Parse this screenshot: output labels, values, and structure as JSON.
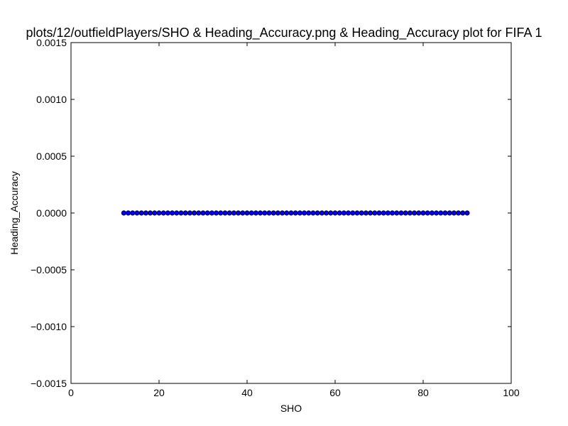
{
  "chart_data": {
    "type": "scatter",
    "title": "plots/12/outfieldPlayers/SHO & Heading_Accuracy.png & Heading_Accuracy plot for FIFA 1",
    "xlabel": "SHO",
    "ylabel": "Heading_Accuracy",
    "xlim": [
      0,
      100
    ],
    "ylim": [
      -0.0015,
      0.0015
    ],
    "x_ticks": [
      "0",
      "20",
      "40",
      "60",
      "80",
      "100"
    ],
    "y_ticks": [
      "0.0015",
      "0.0010",
      "0.0005",
      "0.0000",
      "−0.0005",
      "−0.0010",
      "−0.0015"
    ],
    "grid": false,
    "series": [
      {
        "color": "#0000ff",
        "x": [
          12,
          13,
          14,
          15,
          16,
          17,
          18,
          19,
          20,
          21,
          22,
          23,
          24,
          25,
          26,
          27,
          28,
          29,
          30,
          31,
          32,
          33,
          34,
          35,
          36,
          37,
          38,
          39,
          40,
          41,
          42,
          43,
          44,
          45,
          46,
          47,
          48,
          49,
          50,
          51,
          52,
          53,
          54,
          55,
          56,
          57,
          58,
          59,
          60,
          61,
          62,
          63,
          64,
          65,
          66,
          67,
          68,
          69,
          70,
          71,
          72,
          73,
          74,
          75,
          76,
          77,
          78,
          79,
          80,
          81,
          82,
          83,
          84,
          85,
          86,
          87,
          88,
          89,
          90
        ],
        "y": [
          0,
          0,
          0,
          0,
          0,
          0,
          0,
          0,
          0,
          0,
          0,
          0,
          0,
          0,
          0,
          0,
          0,
          0,
          0,
          0,
          0,
          0,
          0,
          0,
          0,
          0,
          0,
          0,
          0,
          0,
          0,
          0,
          0,
          0,
          0,
          0,
          0,
          0,
          0,
          0,
          0,
          0,
          0,
          0,
          0,
          0,
          0,
          0,
          0,
          0,
          0,
          0,
          0,
          0,
          0,
          0,
          0,
          0,
          0,
          0,
          0,
          0,
          0,
          0,
          0,
          0,
          0,
          0,
          0,
          0,
          0,
          0,
          0,
          0,
          0,
          0,
          0,
          0,
          0
        ]
      }
    ]
  }
}
